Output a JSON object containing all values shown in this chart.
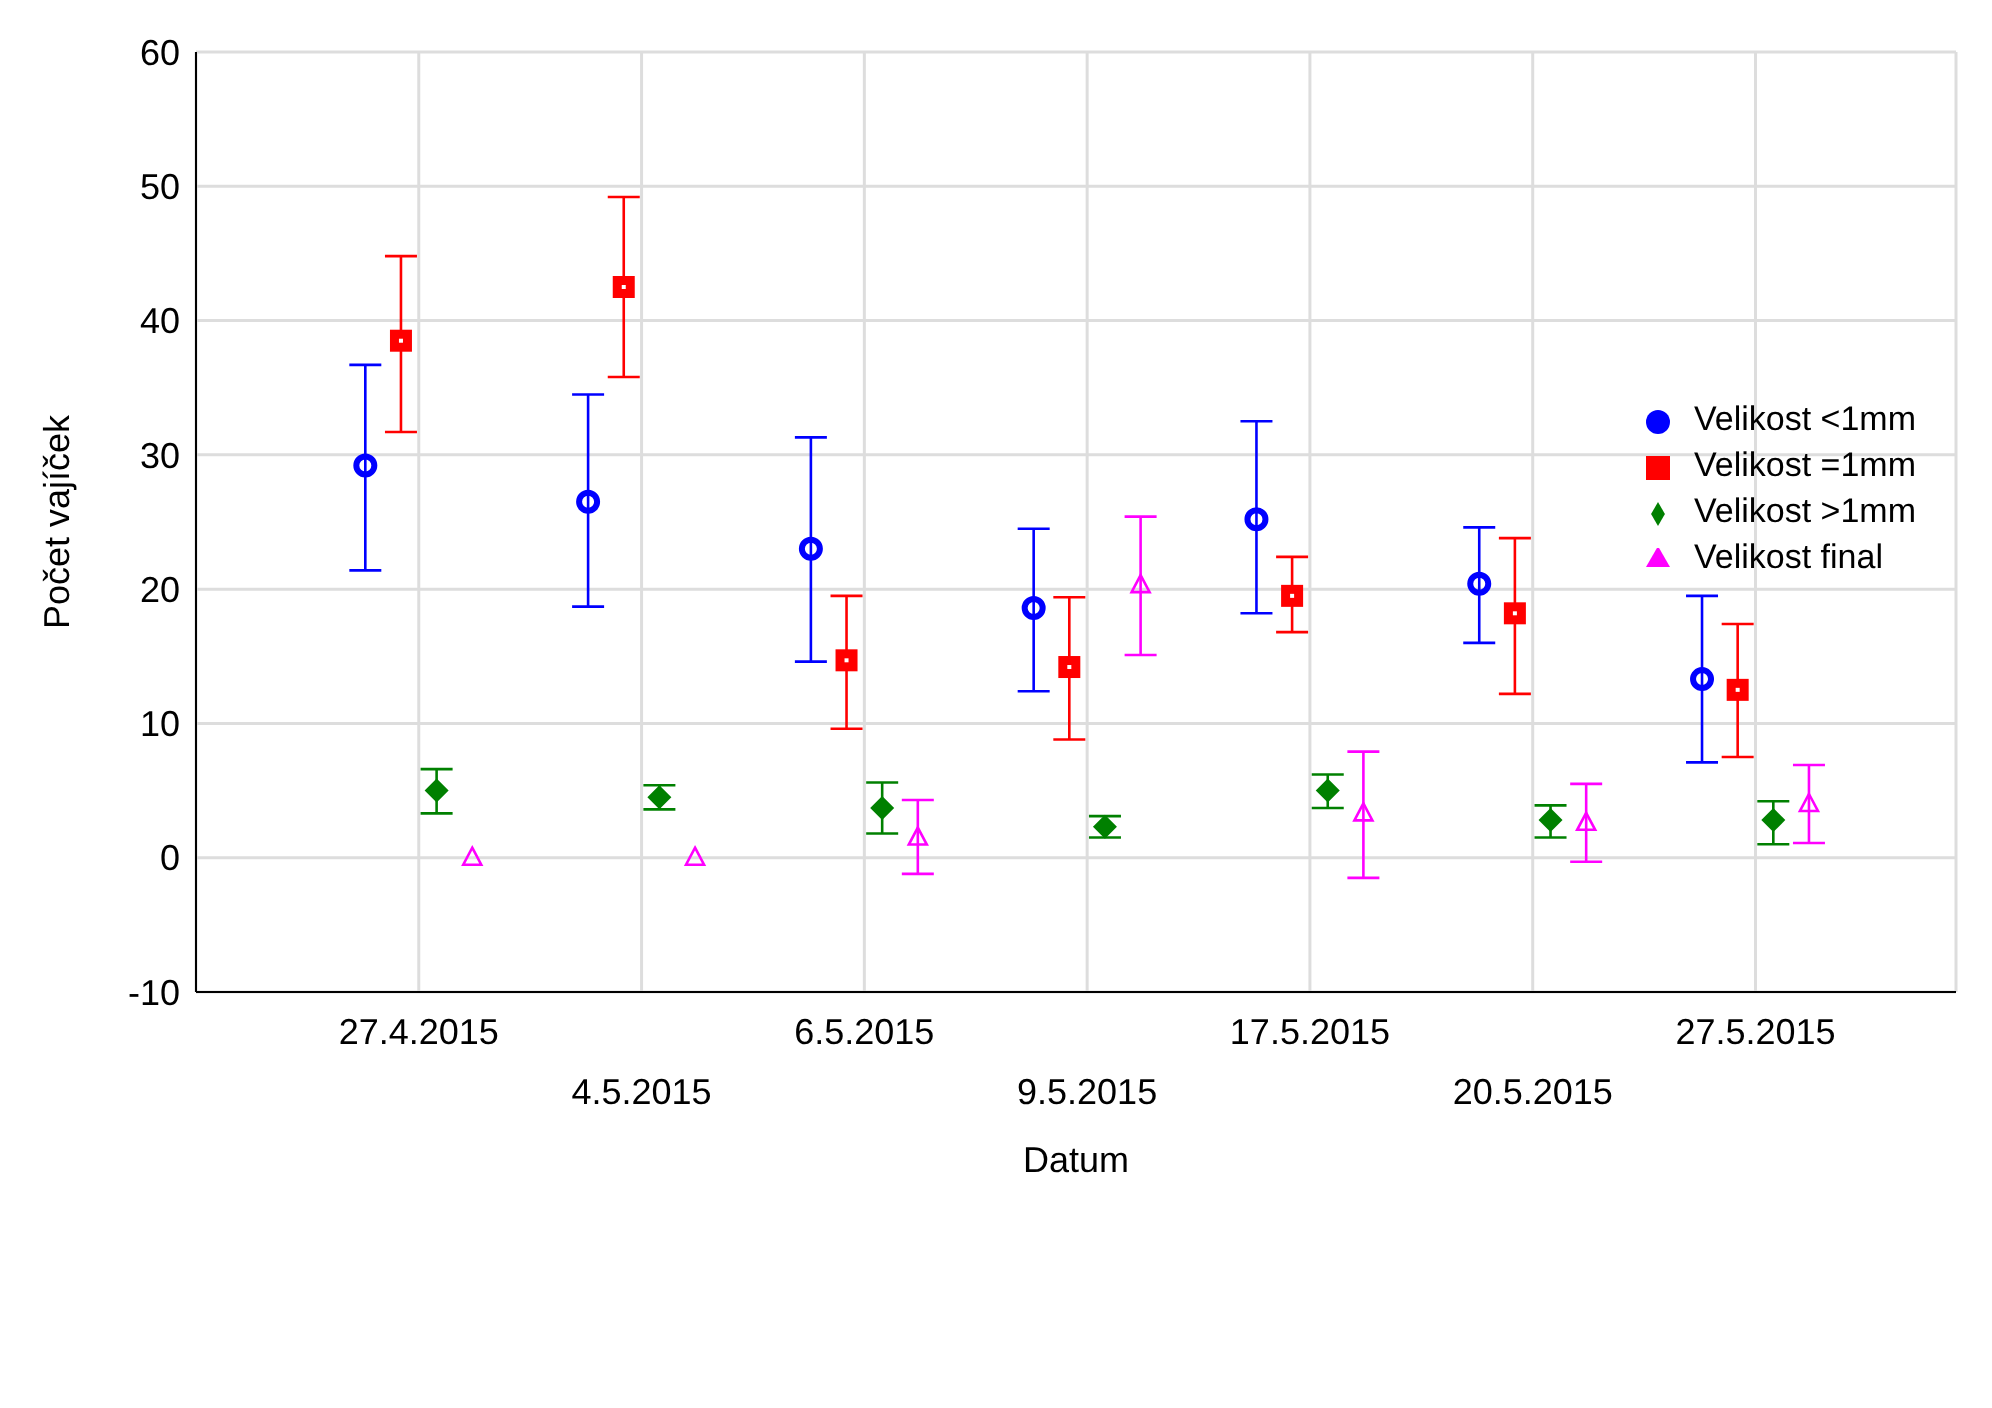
{
  "chart_data": {
    "type": "scatter",
    "xlabel": "Datum",
    "ylabel": "Počet vajíček",
    "categories": [
      "27.4.2015",
      "4.5.2015",
      "6.5.2015",
      "9.5.2015",
      "17.5.2015",
      "20.5.2015",
      "27.5.2015"
    ],
    "ylim": [
      -10,
      60
    ],
    "yticks": [
      -10,
      0,
      10,
      20,
      30,
      40,
      50,
      60
    ],
    "grid": true,
    "legend": "top right",
    "series": [
      {
        "name": "Velikost <1mm",
        "color": "#0000ff",
        "marker": "circle",
        "values": [
          29.2,
          26.5,
          23.0,
          18.6,
          25.2,
          20.4,
          13.3
        ],
        "errors": [
          [
            21.4,
            36.7
          ],
          [
            18.7,
            34.5
          ],
          [
            14.6,
            31.3
          ],
          [
            12.4,
            24.5
          ],
          [
            18.2,
            32.5
          ],
          [
            16.0,
            24.6
          ],
          [
            7.1,
            19.5
          ]
        ]
      },
      {
        "name": "Velikost =1mm",
        "color": "#ff0000",
        "marker": "square",
        "values": [
          38.5,
          42.5,
          14.7,
          14.2,
          19.5,
          18.2,
          12.5
        ],
        "errors": [
          [
            31.7,
            44.8
          ],
          [
            35.8,
            49.2
          ],
          [
            9.6,
            19.5
          ],
          [
            8.8,
            19.4
          ],
          [
            16.8,
            22.4
          ],
          [
            12.2,
            23.8
          ],
          [
            7.5,
            17.4
          ]
        ]
      },
      {
        "name": "Velikost >1mm",
        "color": "#008000",
        "marker": "diamond",
        "values": [
          5.0,
          4.5,
          3.7,
          2.3,
          5.0,
          2.8,
          2.8
        ],
        "errors": [
          [
            3.3,
            6.6
          ],
          [
            3.6,
            5.4
          ],
          [
            1.8,
            5.6
          ],
          [
            1.5,
            3.1
          ],
          [
            3.7,
            6.2
          ],
          [
            1.5,
            3.9
          ],
          [
            1.0,
            4.2
          ]
        ]
      },
      {
        "name": "Velikost final",
        "color": "#ff00ff",
        "marker": "triangle",
        "values": [
          0,
          0,
          1.5,
          20.3,
          3.3,
          2.6,
          4.0
        ],
        "errors": [
          null,
          null,
          [
            -1.2,
            4.3
          ],
          [
            15.1,
            25.4
          ],
          [
            -1.5,
            7.9
          ],
          [
            -0.3,
            5.5
          ],
          [
            1.1,
            6.9
          ]
        ]
      }
    ]
  }
}
